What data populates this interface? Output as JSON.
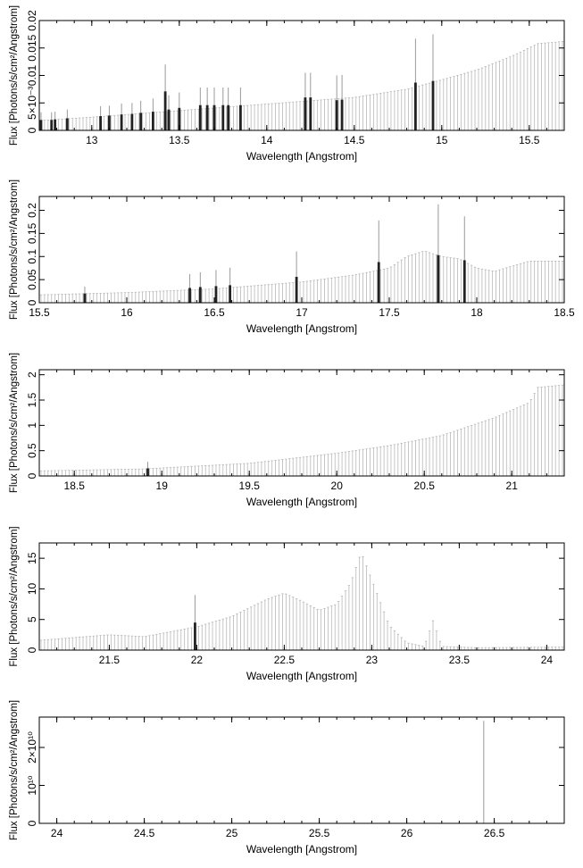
{
  "chart_data": [
    {
      "type": "bar",
      "title": "",
      "xlabel": "Wavelength [Angstrom]",
      "ylabel": "Flux [Photons/s/cm²/Angstrom]",
      "xlim": [
        12.7,
        15.7
      ],
      "ylim": [
        0,
        0.02
      ],
      "xticks": [
        "13",
        "13.5",
        "14",
        "14.5",
        "15",
        "15.5"
      ],
      "yticks": [
        "0",
        "5×10⁻³",
        "0.01",
        "0.015",
        "0.02"
      ],
      "grid": false,
      "continuum": [
        {
          "x": 12.7,
          "y": 0.0018
        },
        {
          "x": 13.0,
          "y": 0.0024
        },
        {
          "x": 13.5,
          "y": 0.0036
        },
        {
          "x": 14.0,
          "y": 0.0048
        },
        {
          "x": 14.5,
          "y": 0.006
        },
        {
          "x": 14.8,
          "y": 0.0075
        },
        {
          "x": 15.0,
          "y": 0.0092
        },
        {
          "x": 15.2,
          "y": 0.011
        },
        {
          "x": 15.4,
          "y": 0.0135
        },
        {
          "x": 15.55,
          "y": 0.0158
        },
        {
          "x": 15.7,
          "y": 0.0162
        }
      ],
      "lines": [
        {
          "x": 12.71,
          "y": 0.0019,
          "err": 0.0014
        },
        {
          "x": 12.77,
          "y": 0.0019,
          "err": 0.0014
        },
        {
          "x": 12.79,
          "y": 0.002,
          "err": 0.0014
        },
        {
          "x": 12.86,
          "y": 0.0022,
          "err": 0.0016
        },
        {
          "x": 13.05,
          "y": 0.0026,
          "err": 0.0018
        },
        {
          "x": 13.1,
          "y": 0.0027,
          "err": 0.0018
        },
        {
          "x": 13.17,
          "y": 0.0029,
          "err": 0.002
        },
        {
          "x": 13.23,
          "y": 0.003,
          "err": 0.002
        },
        {
          "x": 13.28,
          "y": 0.0032,
          "err": 0.0022
        },
        {
          "x": 13.35,
          "y": 0.0034,
          "err": 0.0024
        },
        {
          "x": 13.42,
          "y": 0.0071,
          "err": 0.0049
        },
        {
          "x": 13.44,
          "y": 0.0038,
          "err": 0.0026
        },
        {
          "x": 13.5,
          "y": 0.0041,
          "err": 0.0028
        },
        {
          "x": 13.62,
          "y": 0.0046,
          "err": 0.0032
        },
        {
          "x": 13.66,
          "y": 0.0046,
          "err": 0.0032
        },
        {
          "x": 13.7,
          "y": 0.0046,
          "err": 0.0032
        },
        {
          "x": 13.75,
          "y": 0.0046,
          "err": 0.0032
        },
        {
          "x": 13.78,
          "y": 0.0046,
          "err": 0.0032
        },
        {
          "x": 13.85,
          "y": 0.0046,
          "err": 0.0032
        },
        {
          "x": 14.22,
          "y": 0.006,
          "err": 0.0045
        },
        {
          "x": 14.25,
          "y": 0.006,
          "err": 0.0045
        },
        {
          "x": 14.4,
          "y": 0.0055,
          "err": 0.0045
        },
        {
          "x": 14.43,
          "y": 0.0056,
          "err": 0.0045
        },
        {
          "x": 14.85,
          "y": 0.0087,
          "err": 0.008
        },
        {
          "x": 14.95,
          "y": 0.009,
          "err": 0.0085
        }
      ]
    },
    {
      "type": "bar",
      "title": "",
      "xlabel": "Wavelength [Angstrom]",
      "ylabel": "Flux [Photons/s/cm²/Angstrom]",
      "xlim": [
        15.5,
        18.5
      ],
      "ylim": [
        0,
        0.23
      ],
      "xticks": [
        "15.5",
        "16",
        "16.5",
        "17",
        "17.5",
        "18",
        "18.5"
      ],
      "yticks": [
        "0",
        "0.05",
        "0.1",
        "0.15",
        "0.2"
      ],
      "grid": false,
      "continuum": [
        {
          "x": 15.5,
          "y": 0.017
        },
        {
          "x": 16.0,
          "y": 0.022
        },
        {
          "x": 16.5,
          "y": 0.03
        },
        {
          "x": 17.0,
          "y": 0.045
        },
        {
          "x": 17.3,
          "y": 0.06
        },
        {
          "x": 17.5,
          "y": 0.075
        },
        {
          "x": 17.6,
          "y": 0.1
        },
        {
          "x": 17.7,
          "y": 0.112
        },
        {
          "x": 17.8,
          "y": 0.1
        },
        {
          "x": 17.9,
          "y": 0.095
        },
        {
          "x": 18.0,
          "y": 0.075
        },
        {
          "x": 18.1,
          "y": 0.068
        },
        {
          "x": 18.3,
          "y": 0.09
        },
        {
          "x": 18.5,
          "y": 0.09
        }
      ],
      "lines": [
        {
          "x": 15.76,
          "y": 0.02,
          "err": 0.015
        },
        {
          "x": 16.36,
          "y": 0.032,
          "err": 0.03
        },
        {
          "x": 16.42,
          "y": 0.034,
          "err": 0.032
        },
        {
          "x": 16.51,
          "y": 0.036,
          "err": 0.035
        },
        {
          "x": 16.59,
          "y": 0.038,
          "err": 0.038
        },
        {
          "x": 16.97,
          "y": 0.056,
          "err": 0.055
        },
        {
          "x": 17.44,
          "y": 0.088,
          "err": 0.09
        },
        {
          "x": 17.78,
          "y": 0.103,
          "err": 0.11
        },
        {
          "x": 17.93,
          "y": 0.092,
          "err": 0.095
        }
      ]
    },
    {
      "type": "bar",
      "title": "",
      "xlabel": "Wavelength [Angstrom]",
      "ylabel": "Flux [Photons/s/cm²/Angstrom]",
      "xlim": [
        18.3,
        21.3
      ],
      "ylim": [
        0,
        2.1
      ],
      "xticks": [
        "18.5",
        "19",
        "19.5",
        "20",
        "20.5",
        "21"
      ],
      "yticks": [
        "0",
        "0.5",
        "1",
        "1.5",
        "2"
      ],
      "grid": false,
      "continuum": [
        {
          "x": 18.3,
          "y": 0.1
        },
        {
          "x": 18.9,
          "y": 0.14
        },
        {
          "x": 19.5,
          "y": 0.25
        },
        {
          "x": 20.0,
          "y": 0.45
        },
        {
          "x": 20.3,
          "y": 0.6
        },
        {
          "x": 20.6,
          "y": 0.8
        },
        {
          "x": 20.9,
          "y": 1.15
        },
        {
          "x": 21.1,
          "y": 1.45
        },
        {
          "x": 21.15,
          "y": 1.75
        },
        {
          "x": 21.3,
          "y": 1.8
        }
      ],
      "lines": [
        {
          "x": 18.92,
          "y": 0.15,
          "err": 0.13
        }
      ]
    },
    {
      "type": "bar",
      "title": "",
      "xlabel": "Wavelength [Angstrom]",
      "ylabel": "Flux [Photons/s/cm²/Angstrom]",
      "xlim": [
        21.1,
        24.1
      ],
      "ylim": [
        0,
        17.5
      ],
      "xticks": [
        "21.5",
        "22",
        "22.5",
        "23",
        "23.5",
        "24"
      ],
      "yticks": [
        "0",
        "5",
        "10",
        "15"
      ],
      "grid": false,
      "continuum": [
        {
          "x": 21.1,
          "y": 1.6
        },
        {
          "x": 21.5,
          "y": 2.5
        },
        {
          "x": 21.7,
          "y": 2.2
        },
        {
          "x": 22.0,
          "y": 3.8
        },
        {
          "x": 22.2,
          "y": 5.5
        },
        {
          "x": 22.4,
          "y": 8.3
        },
        {
          "x": 22.5,
          "y": 9.3
        },
        {
          "x": 22.6,
          "y": 8.0
        },
        {
          "x": 22.7,
          "y": 6.5
        },
        {
          "x": 22.8,
          "y": 7.5
        },
        {
          "x": 22.88,
          "y": 11.0
        },
        {
          "x": 22.94,
          "y": 16.0
        },
        {
          "x": 23.02,
          "y": 10.0
        },
        {
          "x": 23.1,
          "y": 4.0
        },
        {
          "x": 23.2,
          "y": 1.2
        },
        {
          "x": 23.3,
          "y": 0.6
        },
        {
          "x": 23.35,
          "y": 4.8
        },
        {
          "x": 23.4,
          "y": 0.6
        },
        {
          "x": 23.6,
          "y": 0.4
        },
        {
          "x": 24.1,
          "y": 0.5
        }
      ],
      "lines": [
        {
          "x": 21.99,
          "y": 4.5,
          "err": 4.5
        }
      ]
    },
    {
      "type": "bar",
      "title": "",
      "xlabel": "Wavelength [Angstrom]",
      "ylabel": "Flux [Photons/s/cm²/Angstrom]",
      "xlim": [
        23.9,
        26.9
      ],
      "ylim": [
        0,
        28000000000
      ],
      "xticks": [
        "24",
        "24.5",
        "25",
        "25.5",
        "26",
        "26.5"
      ],
      "yticks": [
        "0",
        "10¹⁰",
        "2×10¹⁰"
      ],
      "grid": false,
      "continuum": [
        {
          "x": 23.9,
          "y": 0
        },
        {
          "x": 26.9,
          "y": 0
        }
      ],
      "lines": [
        {
          "x": 26.44,
          "y": 27000000000,
          "err": 0
        }
      ]
    }
  ]
}
